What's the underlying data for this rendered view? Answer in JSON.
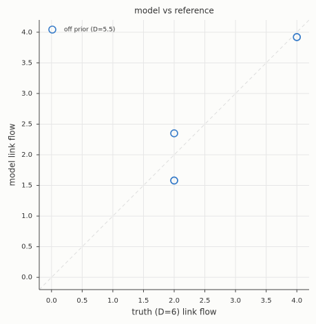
{
  "chart_data": {
    "type": "scatter",
    "title": "model vs reference",
    "xlabel": "truth (D=6) link flow",
    "ylabel": "model link flow",
    "series": [
      {
        "name": "off prior (D=5.5)",
        "color": "#3a7dc9",
        "x": [
          2,
          2,
          2,
          4,
          4
        ],
        "values": [
          2.35,
          1.58,
          1.58,
          3.92,
          3.92
        ]
      }
    ],
    "xlim": [
      -0.2,
      4.2
    ],
    "ylim": [
      -0.2,
      4.2
    ],
    "xticks": [
      {
        "value": 0,
        "label": "0.0"
      },
      0.5,
      {
        "value": 1,
        "label": "1.0"
      },
      1.5,
      {
        "value": 2,
        "label": "2.0"
      },
      2.5,
      {
        "value": 3,
        "label": "3.0"
      },
      3.5,
      {
        "value": 4,
        "label": "4.0"
      }
    ],
    "yticks": [
      {
        "value": 0,
        "label": "0.0"
      },
      0.5,
      {
        "value": 1,
        "label": "1.0"
      },
      1.5,
      {
        "value": 2,
        "label": "2.0"
      },
      2.5,
      {
        "value": 3,
        "label": "3.0"
      },
      3.5,
      {
        "value": 4,
        "label": "4.0"
      }
    ],
    "grid": true,
    "legend": "upper left"
  }
}
